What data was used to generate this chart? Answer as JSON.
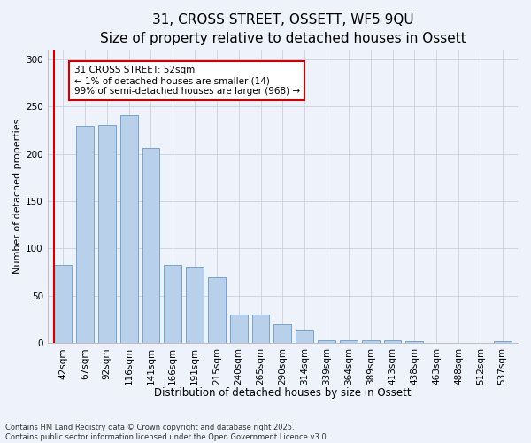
{
  "title_line1": "31, CROSS STREET, OSSETT, WF5 9QU",
  "title_line2": "Size of property relative to detached houses in Ossett",
  "xlabel": "Distribution of detached houses by size in Ossett",
  "ylabel": "Number of detached properties",
  "categories": [
    "42sqm",
    "67sqm",
    "92sqm",
    "116sqm",
    "141sqm",
    "166sqm",
    "191sqm",
    "215sqm",
    "240sqm",
    "265sqm",
    "290sqm",
    "314sqm",
    "339sqm",
    "364sqm",
    "389sqm",
    "413sqm",
    "438sqm",
    "463sqm",
    "488sqm",
    "512sqm",
    "537sqm"
  ],
  "values": [
    83,
    230,
    231,
    241,
    206,
    83,
    81,
    70,
    30,
    30,
    20,
    13,
    3,
    3,
    3,
    3,
    2,
    0,
    0,
    0,
    2
  ],
  "bar_color": "#b8d0ea",
  "bar_edge_color": "#6699cc",
  "annotation_text": "31 CROSS STREET: 52sqm\n← 1% of detached houses are smaller (14)\n99% of semi-detached houses are larger (968) →",
  "annotation_box_color": "#ffffff",
  "annotation_box_edge": "#cc0000",
  "ylim": [
    0,
    310
  ],
  "yticks": [
    0,
    50,
    100,
    150,
    200,
    250,
    300
  ],
  "footer": "Contains HM Land Registry data © Crown copyright and database right 2025.\nContains public sector information licensed under the Open Government Licence v3.0.",
  "bg_color": "#eef2fa",
  "grid_color": "#c8c8d8",
  "title_fontsize": 11,
  "subtitle_fontsize": 9.5,
  "tick_fontsize": 7.5,
  "ylabel_fontsize": 8,
  "xlabel_fontsize": 8.5,
  "footer_fontsize": 6,
  "annot_fontsize": 7.5
}
